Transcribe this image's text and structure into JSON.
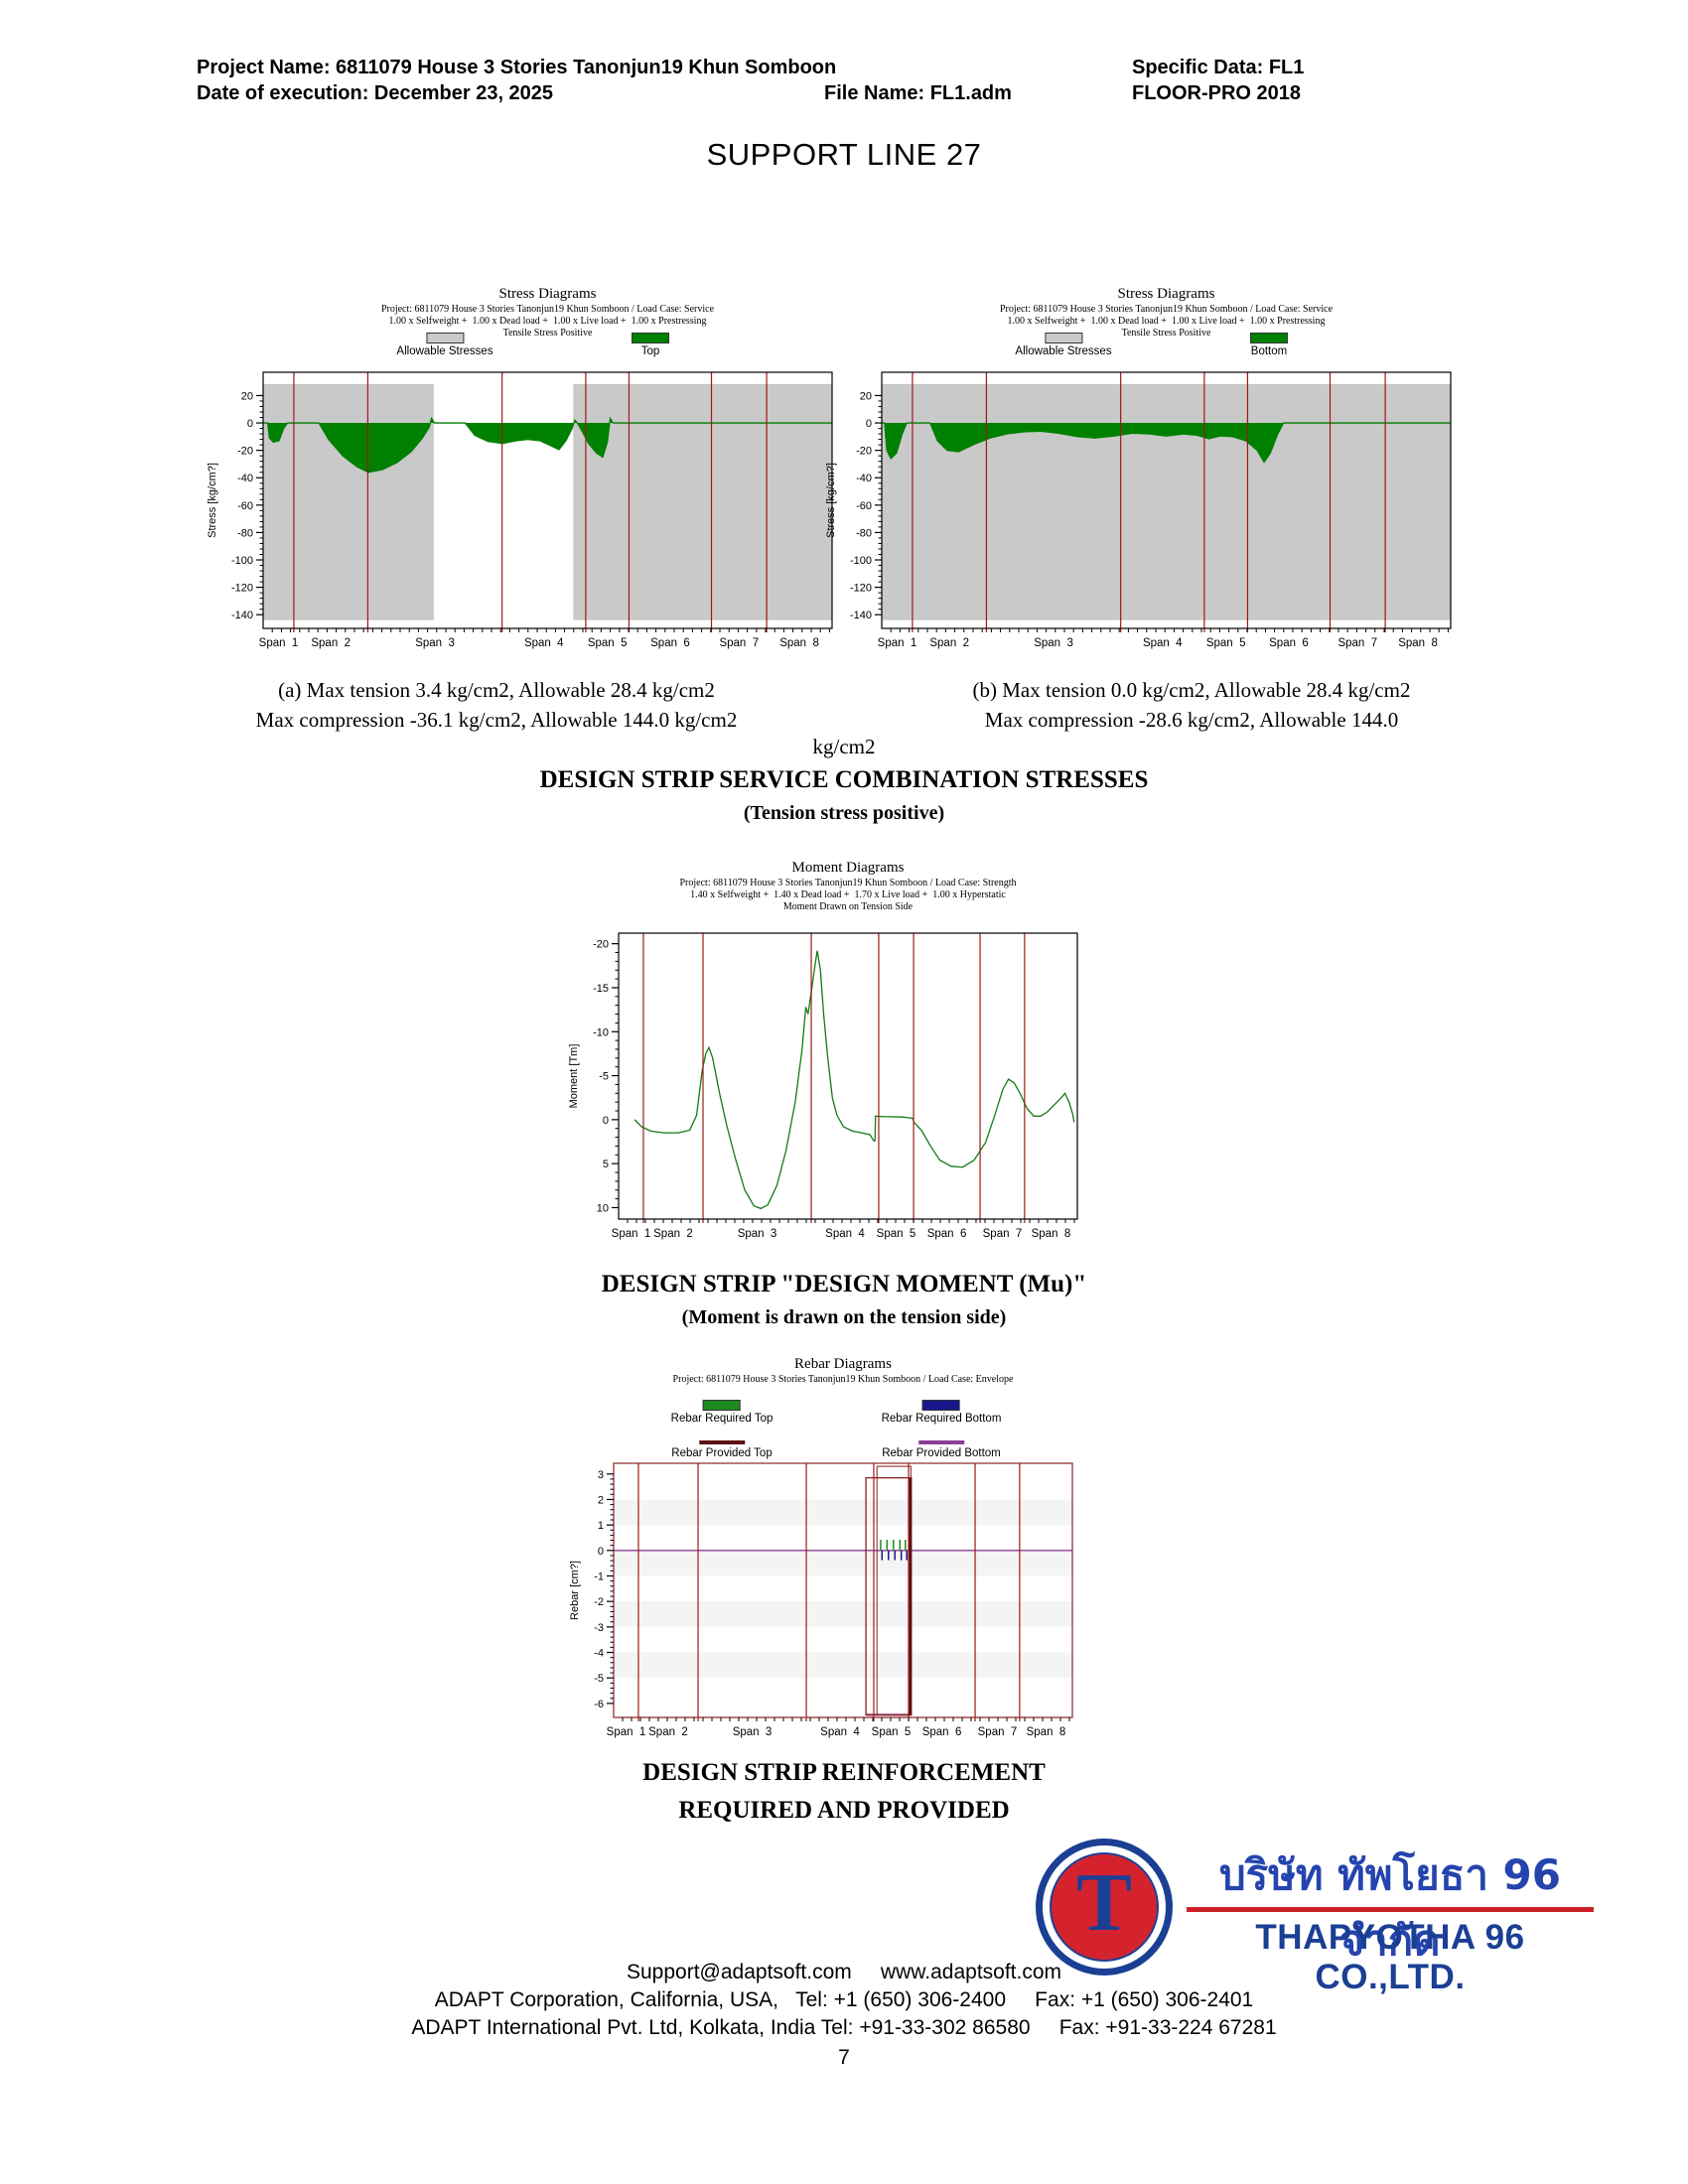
{
  "header": {
    "project_label": "Project Name: 6811079 House 3 Stories Tanonjun19 Khun Somboon",
    "specific_data": "Specific Data: FL1",
    "date_line": "Date of execution: December 23, 2025",
    "file_name": "File Name: FL1.adm",
    "software": "FLOOR-PRO 2018"
  },
  "page_title": "SUPPORT LINE 27",
  "captions": {
    "a_line1": "(a) Max tension 3.4 kg/cm2, Allowable 28.4 kg/cm2",
    "a_line2": "Max compression -36.1 kg/cm2, Allowable 144.0 kg/cm2",
    "b_line1": "(b) Max tension 0.0 kg/cm2, Allowable 28.4 kg/cm2",
    "b_line2": "Max compression -28.6 kg/cm2, Allowable 144.0",
    "b_overflow": "kg/cm2"
  },
  "headings": {
    "stress_title": "DESIGN STRIP SERVICE COMBINATION STRESSES",
    "stress_sub": "(Tension stress positive)",
    "moment_title": "DESIGN STRIP \"DESIGN MOMENT (Mu)\"",
    "moment_sub": "(Moment is drawn on the tension side)",
    "rebar_title_line1": "DESIGN STRIP REINFORCEMENT",
    "rebar_title_line2": "REQUIRED AND PROVIDED"
  },
  "logo": {
    "monogram": "T",
    "thai_name": "บริษัท ทัพโยธา 96 จำกัด",
    "english_name": "THAPYOTHA 96 CO.,LTD.",
    "ring_color": "#1b3f94",
    "circle_color": "#d5232e",
    "accent_red": "#cc2026"
  },
  "footer": {
    "line1": "Support@adaptsoft.com     www.adaptsoft.com",
    "line2": "ADAPT Corporation, California, USA,   Tel: +1 (650) 306-2400     Fax: +1 (650) 306-2401",
    "line3": "ADAPT International Pvt. Ltd, Kolkata, India Tel: +91-33-302 86580     Fax: +91-33-224 67281"
  },
  "page_number": "7",
  "chart_data": [
    {
      "id": "stress_top",
      "type": "area",
      "title": "Stress Diagrams",
      "subtitle_project": "Project: 6811079 House 3 Stories Tanonjun19 Khun Somboon / Load Case: Service",
      "subtitle_combo": "1.00 x Selfweight +  1.00 x Dead load +  1.00 x Live load +  1.00 x Prestressing",
      "subtitle_note": "Tensile Stress Positive",
      "legend": [
        {
          "label": "Allowable Stresses",
          "color": "#c9c9c9",
          "style": "box"
        },
        {
          "label": "Top",
          "color": "#008000",
          "style": "box"
        }
      ],
      "ylabel": "Stress [kg/cm?]",
      "yticks": [
        20,
        0,
        -20,
        -40,
        -60,
        -80,
        -100,
        -120,
        -140
      ],
      "ylim_top": 37,
      "ylim_bottom": -150,
      "grid": false,
      "legend_position": "top",
      "xlabels": [
        "Span  1",
        "Span  2",
        "Span  3",
        "Span  4",
        "Span  5",
        "Span  6",
        "Span  7",
        "Span  8"
      ],
      "span_boundaries": [
        0,
        0.054,
        0.184,
        0.42,
        0.567,
        0.643,
        0.788,
        0.885,
        1
      ],
      "allowable_color": "#c9c9c9",
      "allowable_tension": 28.4,
      "allowable_compression": -144.0,
      "max_tension": 3.4,
      "max_compression": -36.1,
      "allowable_regions": [
        {
          "x0": 0,
          "x1": 0.3,
          "top": 28.4,
          "bottom": -144
        },
        {
          "x0": 0.545,
          "x1": 1,
          "top": 28.4,
          "bottom": -144
        }
      ],
      "series": [
        {
          "name": "Top stress",
          "color": "#008000",
          "fill": true,
          "points": [
            [
              0,
              0
            ],
            [
              0.008,
              0
            ],
            [
              0.011,
              -11
            ],
            [
              0.018,
              -14
            ],
            [
              0.028,
              -13
            ],
            [
              0.036,
              -4
            ],
            [
              0.043,
              0
            ],
            [
              0.098,
              0
            ],
            [
              0.115,
              -12
            ],
            [
              0.14,
              -24
            ],
            [
              0.165,
              -32
            ],
            [
              0.185,
              -36.1
            ],
            [
              0.21,
              -34
            ],
            [
              0.235,
              -29
            ],
            [
              0.26,
              -21
            ],
            [
              0.28,
              -11
            ],
            [
              0.292,
              -3
            ],
            [
              0.296,
              3.4
            ],
            [
              0.301,
              0
            ],
            [
              0.355,
              0
            ],
            [
              0.372,
              -9
            ],
            [
              0.395,
              -13.5
            ],
            [
              0.42,
              -15
            ],
            [
              0.445,
              -13
            ],
            [
              0.465,
              -12
            ],
            [
              0.487,
              -13
            ],
            [
              0.505,
              -16.5
            ],
            [
              0.52,
              -19.5
            ],
            [
              0.532,
              -13
            ],
            [
              0.543,
              -4
            ],
            [
              0.548,
              2
            ],
            [
              0.552,
              0
            ],
            [
              0.558,
              -4
            ],
            [
              0.572,
              -15
            ],
            [
              0.586,
              -22
            ],
            [
              0.597,
              -25
            ],
            [
              0.605,
              -14
            ],
            [
              0.61,
              3.4
            ],
            [
              0.615,
              0
            ],
            [
              1,
              0
            ]
          ]
        }
      ],
      "support_color": "#a01818",
      "frame_color": "#000000"
    },
    {
      "id": "stress_bottom",
      "type": "area",
      "title": "Stress Diagrams",
      "subtitle_project": "Project: 6811079 House 3 Stories Tanonjun19 Khun Somboon / Load Case: Service",
      "subtitle_combo": "1.00 x Selfweight +  1.00 x Dead load +  1.00 x Live load +  1.00 x Prestressing",
      "subtitle_note": "Tensile Stress Positive",
      "legend": [
        {
          "label": "Allowable Stresses",
          "color": "#c9c9c9",
          "style": "box"
        },
        {
          "label": "Bottom",
          "color": "#008000",
          "style": "box"
        }
      ],
      "ylabel": "Stress [kg/cm?]",
      "yticks": [
        20,
        0,
        -20,
        -40,
        -60,
        -80,
        -100,
        -120,
        -140
      ],
      "ylim_top": 37,
      "ylim_bottom": -150,
      "grid": false,
      "legend_position": "top",
      "xlabels": [
        "Span  1",
        "Span  2",
        "Span  3",
        "Span  4",
        "Span  5",
        "Span  6",
        "Span  7",
        "Span  8"
      ],
      "span_boundaries": [
        0,
        0.054,
        0.184,
        0.42,
        0.567,
        0.643,
        0.788,
        0.885,
        1
      ],
      "allowable_color": "#c9c9c9",
      "allowable_tension": 28.4,
      "allowable_compression": -144.0,
      "max_tension": 0.0,
      "max_compression": -28.6,
      "allowable_regions": [
        {
          "x0": 0,
          "x1": 1,
          "top": 28.4,
          "bottom": -144
        }
      ],
      "series": [
        {
          "name": "Bottom stress",
          "color": "#008000",
          "fill": true,
          "points": [
            [
              0,
              0
            ],
            [
              0.005,
              0
            ],
            [
              0.009,
              -20
            ],
            [
              0.016,
              -26
            ],
            [
              0.026,
              -22
            ],
            [
              0.036,
              -8
            ],
            [
              0.044,
              0
            ],
            [
              0.085,
              0
            ],
            [
              0.098,
              -13
            ],
            [
              0.115,
              -20
            ],
            [
              0.135,
              -21
            ],
            [
              0.16,
              -16
            ],
            [
              0.19,
              -11
            ],
            [
              0.22,
              -8
            ],
            [
              0.25,
              -6.5
            ],
            [
              0.28,
              -6
            ],
            [
              0.31,
              -7.5
            ],
            [
              0.345,
              -10
            ],
            [
              0.375,
              -11
            ],
            [
              0.41,
              -9.5
            ],
            [
              0.44,
              -7.5
            ],
            [
              0.47,
              -8
            ],
            [
              0.5,
              -9.5
            ],
            [
              0.53,
              -8
            ],
            [
              0.555,
              -9
            ],
            [
              0.575,
              -11.5
            ],
            [
              0.595,
              -9.5
            ],
            [
              0.617,
              -10
            ],
            [
              0.64,
              -13
            ],
            [
              0.66,
              -20
            ],
            [
              0.672,
              -28.6
            ],
            [
              0.683,
              -22
            ],
            [
              0.695,
              -9
            ],
            [
              0.706,
              0
            ],
            [
              1,
              0
            ]
          ]
        }
      ],
      "support_color": "#a01818",
      "frame_color": "#000000"
    },
    {
      "id": "moment",
      "type": "line",
      "title": "Moment Diagrams",
      "subtitle_project": "Project: 6811079 House 3 Stories Tanonjun19 Khun Somboon / Load Case: Strength",
      "subtitle_combo": "1.40 x Selfweight +  1.40 x Dead load +  1.70 x Live load +  1.00 x Hyperstatic",
      "subtitle_note": "Moment Drawn on Tension Side",
      "legend": [],
      "ylabel": "Moment [Tm]",
      "yticks": [
        -20,
        -15,
        -10,
        -5,
        0,
        5,
        10
      ],
      "ylim_top": -21.2,
      "ylim_bottom": 11.3,
      "grid": false,
      "stripe_bands": true,
      "axis_inverted": true,
      "xlabels": [
        "Span  1",
        "Span  2",
        "Span  3",
        "Span  4",
        "Span  5",
        "Span  6",
        "Span  7",
        "Span  8"
      ],
      "span_boundaries": [
        0,
        0.054,
        0.184,
        0.42,
        0.567,
        0.643,
        0.788,
        0.885,
        1
      ],
      "peak_negative_moment": -19.2,
      "peak_positive_moment": 10.1,
      "series": [
        {
          "name": "Design moment Mu",
          "color": "#157a15",
          "fill": false,
          "points": [
            [
              0.035,
              0
            ],
            [
              0.05,
              0.8
            ],
            [
              0.07,
              1.3
            ],
            [
              0.1,
              1.5
            ],
            [
              0.13,
              1.5
            ],
            [
              0.155,
              1.2
            ],
            [
              0.17,
              -0.5
            ],
            [
              0.182,
              -5.5
            ],
            [
              0.19,
              -7.5
            ],
            [
              0.197,
              -8.2
            ],
            [
              0.205,
              -7
            ],
            [
              0.22,
              -3
            ],
            [
              0.235,
              0.5
            ],
            [
              0.255,
              4.5
            ],
            [
              0.275,
              8
            ],
            [
              0.295,
              9.8
            ],
            [
              0.31,
              10.1
            ],
            [
              0.325,
              9.7
            ],
            [
              0.345,
              7.5
            ],
            [
              0.365,
              3.5
            ],
            [
              0.385,
              -2
            ],
            [
              0.4,
              -8
            ],
            [
              0.408,
              -12.8
            ],
            [
              0.413,
              -12
            ],
            [
              0.42,
              -14.5
            ],
            [
              0.428,
              -17.5
            ],
            [
              0.433,
              -19.2
            ],
            [
              0.44,
              -17
            ],
            [
              0.447,
              -12
            ],
            [
              0.456,
              -7
            ],
            [
              0.466,
              -2.5
            ],
            [
              0.476,
              -0.5
            ],
            [
              0.49,
              0.8
            ],
            [
              0.51,
              1.3
            ],
            [
              0.53,
              1.5
            ],
            [
              0.548,
              1.7
            ],
            [
              0.556,
              2.4
            ],
            [
              0.559,
              2.4
            ],
            [
              0.56,
              -0.4
            ],
            [
              0.58,
              -0.35
            ],
            [
              0.62,
              -0.3
            ],
            [
              0.641,
              -0.15
            ],
            [
              0.644,
              0.3
            ],
            [
              0.66,
              1.2
            ],
            [
              0.68,
              3
            ],
            [
              0.7,
              4.6
            ],
            [
              0.725,
              5.3
            ],
            [
              0.75,
              5.4
            ],
            [
              0.775,
              4.6
            ],
            [
              0.8,
              2.6
            ],
            [
              0.82,
              -0.5
            ],
            [
              0.838,
              -3.5
            ],
            [
              0.85,
              -4.6
            ],
            [
              0.862,
              -4.2
            ],
            [
              0.875,
              -3
            ],
            [
              0.89,
              -1.3
            ],
            [
              0.905,
              -0.4
            ],
            [
              0.92,
              -0.4
            ],
            [
              0.935,
              -0.9
            ],
            [
              0.95,
              -1.7
            ],
            [
              0.965,
              -2.5
            ],
            [
              0.973,
              -3.0
            ],
            [
              0.982,
              -2
            ],
            [
              0.99,
              -0.6
            ],
            [
              0.993,
              0.3
            ]
          ]
        }
      ],
      "support_color": "#9b1c1c",
      "frame_color": "#000000"
    },
    {
      "id": "rebar",
      "type": "line",
      "title": "Rebar Diagrams",
      "subtitle_project": "Project: 6811079 House 3 Stories Tanonjun19 Khun Somboon / Load Case: Envelope",
      "legend": [
        {
          "label": "Rebar Required Top",
          "color": "#1f8c1f",
          "style": "box"
        },
        {
          "label": "Rebar Required Bottom",
          "color": "#16168c",
          "style": "box"
        },
        {
          "label": "Rebar Provided Top",
          "color": "#5c1212",
          "style": "line"
        },
        {
          "label": "Rebar Provided Bottom",
          "color": "#8c3e96",
          "style": "line"
        }
      ],
      "ylabel": "Rebar [cm?]",
      "yticks": [
        3,
        2,
        1,
        0,
        -1,
        -2,
        -3,
        -4,
        -5,
        -6
      ],
      "ylim_top": 3.42,
      "ylim_bottom": -6.55,
      "grid": false,
      "stripe_bands": true,
      "xlabels": [
        "Span  1",
        "Span  2",
        "Span  3",
        "Span  4",
        "Span  5",
        "Span  6",
        "Span  7",
        "Span  8"
      ],
      "span_boundaries": [
        0,
        0.054,
        0.184,
        0.42,
        0.567,
        0.643,
        0.788,
        0.885,
        1
      ],
      "provided_top_extent": {
        "x0": 0.55,
        "x1": 0.649,
        "top": 2.85,
        "bottom": -6.45
      },
      "hlines": [
        {
          "v": 0,
          "x0": 0,
          "x1": 1,
          "color": "#8c3e96",
          "w": 1.4
        },
        {
          "v": -6.45,
          "x0": 0.55,
          "x1": 0.649,
          "color": "#8c3e96",
          "w": 2
        }
      ],
      "rects": [
        {
          "x0": 0.55,
          "x1": 0.649,
          "top": 2.85,
          "bottom": -6.45,
          "color": "#8b1f1f",
          "w": 1.3
        },
        {
          "x0": 0.574,
          "x1": 0.648,
          "top": 3.3,
          "bottom": -6.45,
          "color": "#8b1f1f",
          "w": 1
        }
      ],
      "vbars": [
        {
          "x": 0.6455,
          "top": 2.85,
          "bottom": -6.45,
          "color": "#5c1212",
          "w": 3.5
        }
      ],
      "tick_marks": [
        {
          "color": "#1f8c1f",
          "xs": [
            0.582,
            0.596,
            0.61,
            0.624,
            0.636
          ],
          "v0": 0,
          "v1": 0.42,
          "w": 1.5
        },
        {
          "color": "#16168c",
          "xs": [
            0.585,
            0.599,
            0.613,
            0.627,
            0.639
          ],
          "v0": 0,
          "v1": -0.38,
          "w": 1.5
        }
      ],
      "series": [],
      "support_color": "#a01818",
      "frame_color": "#8b2222"
    }
  ]
}
